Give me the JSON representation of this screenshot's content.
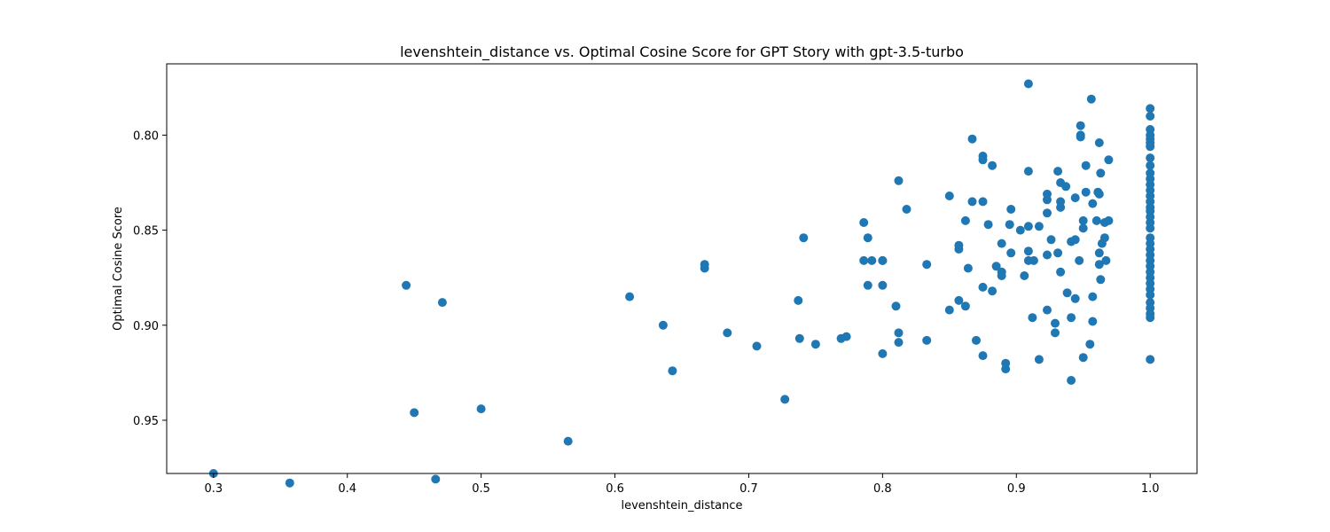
{
  "chart_data": {
    "type": "scatter",
    "title": "levenshtein_distance vs. Optimal Cosine Score for GPT Story with gpt-3.5-turbo",
    "xlabel": "levenshtein_distance",
    "ylabel": "Optimal Cosine Score",
    "xlim": [
      0.265,
      1.035
    ],
    "ylim": [
      0.978,
      0.7625
    ],
    "y_inverted": true,
    "grid": false,
    "color": "#1f77b4",
    "x_ticks": [
      0.3,
      0.4,
      0.5,
      0.6,
      0.7,
      0.8,
      0.9,
      1.0
    ],
    "x_tick_labels": [
      "0.3",
      "0.4",
      "0.5",
      "0.6",
      "0.7",
      "0.8",
      "0.9",
      "1.0"
    ],
    "y_ticks": [
      0.8,
      0.85,
      0.9,
      0.95
    ],
    "y_tick_labels": [
      "0.80",
      "0.85",
      "0.90",
      "0.95"
    ],
    "points": [
      [
        0.3,
        0.978
      ],
      [
        0.357,
        0.983
      ],
      [
        0.444,
        0.879
      ],
      [
        0.45,
        0.946
      ],
      [
        0.466,
        0.981
      ],
      [
        0.471,
        0.888
      ],
      [
        0.5,
        0.944
      ],
      [
        0.565,
        0.961
      ],
      [
        0.611,
        0.885
      ],
      [
        0.636,
        0.9
      ],
      [
        0.643,
        0.924
      ],
      [
        0.667,
        0.868
      ],
      [
        0.667,
        0.87
      ],
      [
        0.684,
        0.904
      ],
      [
        0.706,
        0.911
      ],
      [
        0.727,
        0.939
      ],
      [
        0.737,
        0.887
      ],
      [
        0.738,
        0.907
      ],
      [
        0.741,
        0.854
      ],
      [
        0.75,
        0.91
      ],
      [
        0.769,
        0.907
      ],
      [
        0.773,
        0.906
      ],
      [
        0.786,
        0.846
      ],
      [
        0.786,
        0.866
      ],
      [
        0.789,
        0.854
      ],
      [
        0.789,
        0.879
      ],
      [
        0.792,
        0.866
      ],
      [
        0.8,
        0.866
      ],
      [
        0.8,
        0.866
      ],
      [
        0.8,
        0.879
      ],
      [
        0.8,
        0.915
      ],
      [
        0.81,
        0.89
      ],
      [
        0.812,
        0.824
      ],
      [
        0.812,
        0.904
      ],
      [
        0.812,
        0.909
      ],
      [
        0.818,
        0.839
      ],
      [
        0.833,
        0.868
      ],
      [
        0.833,
        0.908
      ],
      [
        0.85,
        0.832
      ],
      [
        0.85,
        0.892
      ],
      [
        0.857,
        0.858
      ],
      [
        0.857,
        0.86
      ],
      [
        0.857,
        0.887
      ],
      [
        0.862,
        0.845
      ],
      [
        0.862,
        0.89
      ],
      [
        0.864,
        0.87
      ],
      [
        0.867,
        0.802
      ],
      [
        0.867,
        0.835
      ],
      [
        0.87,
        0.908
      ],
      [
        0.875,
        0.811
      ],
      [
        0.875,
        0.813
      ],
      [
        0.875,
        0.835
      ],
      [
        0.875,
        0.88
      ],
      [
        0.875,
        0.916
      ],
      [
        0.879,
        0.847
      ],
      [
        0.882,
        0.816
      ],
      [
        0.882,
        0.882
      ],
      [
        0.885,
        0.869
      ],
      [
        0.889,
        0.857
      ],
      [
        0.889,
        0.872
      ],
      [
        0.889,
        0.874
      ],
      [
        0.892,
        0.92
      ],
      [
        0.892,
        0.923
      ],
      [
        0.895,
        0.847
      ],
      [
        0.896,
        0.839
      ],
      [
        0.896,
        0.862
      ],
      [
        0.903,
        0.85
      ],
      [
        0.906,
        0.874
      ],
      [
        0.909,
        0.773
      ],
      [
        0.909,
        0.819
      ],
      [
        0.909,
        0.848
      ],
      [
        0.909,
        0.861
      ],
      [
        0.909,
        0.866
      ],
      [
        0.912,
        0.896
      ],
      [
        0.913,
        0.866
      ],
      [
        0.917,
        0.848
      ],
      [
        0.917,
        0.918
      ],
      [
        0.923,
        0.831
      ],
      [
        0.923,
        0.834
      ],
      [
        0.923,
        0.841
      ],
      [
        0.923,
        0.863
      ],
      [
        0.923,
        0.892
      ],
      [
        0.926,
        0.855
      ],
      [
        0.929,
        0.899
      ],
      [
        0.929,
        0.904
      ],
      [
        0.931,
        0.819
      ],
      [
        0.931,
        0.862
      ],
      [
        0.933,
        0.825
      ],
      [
        0.933,
        0.835
      ],
      [
        0.933,
        0.838
      ],
      [
        0.933,
        0.872
      ],
      [
        0.937,
        0.827
      ],
      [
        0.938,
        0.883
      ],
      [
        0.941,
        0.856
      ],
      [
        0.941,
        0.896
      ],
      [
        0.941,
        0.929
      ],
      [
        0.944,
        0.833
      ],
      [
        0.944,
        0.855
      ],
      [
        0.944,
        0.886
      ],
      [
        0.947,
        0.866
      ],
      [
        0.948,
        0.795
      ],
      [
        0.948,
        0.8
      ],
      [
        0.948,
        0.801
      ],
      [
        0.95,
        0.845
      ],
      [
        0.95,
        0.849
      ],
      [
        0.95,
        0.917
      ],
      [
        0.952,
        0.816
      ],
      [
        0.952,
        0.83
      ],
      [
        0.955,
        0.91
      ],
      [
        0.956,
        0.781
      ],
      [
        0.957,
        0.836
      ],
      [
        0.957,
        0.885
      ],
      [
        0.957,
        0.898
      ],
      [
        0.96,
        0.845
      ],
      [
        0.961,
        0.83
      ],
      [
        0.962,
        0.804
      ],
      [
        0.962,
        0.831
      ],
      [
        0.962,
        0.862
      ],
      [
        0.962,
        0.868
      ],
      [
        0.963,
        0.82
      ],
      [
        0.963,
        0.876
      ],
      [
        0.964,
        0.857
      ],
      [
        0.966,
        0.846
      ],
      [
        0.966,
        0.854
      ],
      [
        0.967,
        0.866
      ],
      [
        0.969,
        0.845
      ],
      [
        0.969,
        0.813
      ],
      [
        1.0,
        0.786
      ],
      [
        1.0,
        0.79
      ],
      [
        1.0,
        0.797
      ],
      [
        1.0,
        0.8
      ],
      [
        1.0,
        0.802
      ],
      [
        1.0,
        0.804
      ],
      [
        1.0,
        0.806
      ],
      [
        1.0,
        0.812
      ],
      [
        1.0,
        0.816
      ],
      [
        1.0,
        0.82
      ],
      [
        1.0,
        0.823
      ],
      [
        1.0,
        0.826
      ],
      [
        1.0,
        0.829
      ],
      [
        1.0,
        0.832
      ],
      [
        1.0,
        0.835
      ],
      [
        1.0,
        0.838
      ],
      [
        1.0,
        0.84
      ],
      [
        1.0,
        0.843
      ],
      [
        1.0,
        0.846
      ],
      [
        1.0,
        0.849
      ],
      [
        1.0,
        0.854
      ],
      [
        1.0,
        0.857
      ],
      [
        1.0,
        0.86
      ],
      [
        1.0,
        0.863
      ],
      [
        1.0,
        0.866
      ],
      [
        1.0,
        0.869
      ],
      [
        1.0,
        0.872
      ],
      [
        1.0,
        0.875
      ],
      [
        1.0,
        0.878
      ],
      [
        1.0,
        0.881
      ],
      [
        1.0,
        0.884
      ],
      [
        1.0,
        0.888
      ],
      [
        1.0,
        0.891
      ],
      [
        1.0,
        0.894
      ],
      [
        1.0,
        0.896
      ],
      [
        1.0,
        0.918
      ]
    ]
  }
}
